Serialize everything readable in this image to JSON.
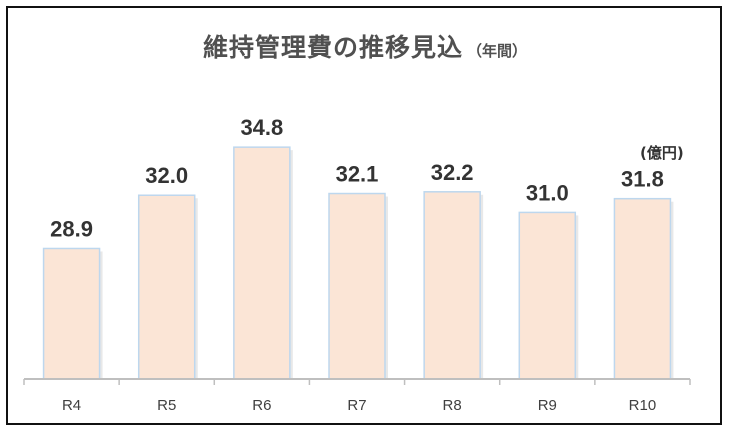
{
  "chart_data": {
    "type": "bar",
    "title": "維持管理費の推移見込",
    "title_suffix": "（年間）",
    "unit_label": "(億円)",
    "categories": [
      "R4",
      "R5",
      "R6",
      "R7",
      "R8",
      "R9",
      "R10"
    ],
    "values": [
      28.9,
      32.0,
      34.8,
      32.1,
      32.2,
      31.0,
      31.8
    ],
    "data_labels": [
      "28.9",
      "32.0",
      "34.8",
      "32.1",
      "32.2",
      "31.0",
      "31.8"
    ],
    "ylim": [
      21.3,
      35.1
    ],
    "bar_color": "#fbe5d6",
    "bar_edge_color": "#bdd7ee",
    "axis_color": "#bfbfbf",
    "grid": false,
    "legend": "none"
  }
}
